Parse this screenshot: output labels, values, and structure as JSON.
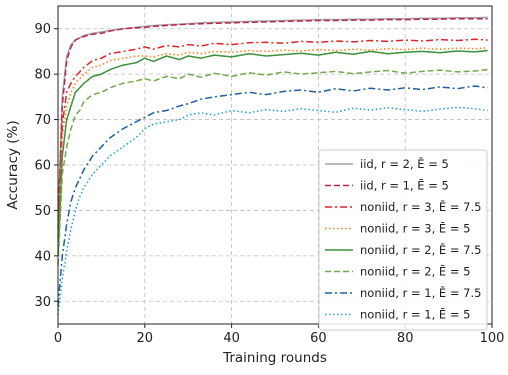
{
  "chart_data": {
    "type": "line",
    "xlabel": "Training rounds",
    "ylabel": "Accuracy (%)",
    "xlim": [
      0,
      100
    ],
    "ylim": [
      25,
      95
    ],
    "x_ticks": [
      0,
      20,
      40,
      60,
      80,
      100
    ],
    "y_ticks": [
      30,
      40,
      50,
      60,
      70,
      80,
      90
    ],
    "grid": true,
    "legend_position": "lower-right",
    "x": [
      0,
      1,
      2,
      3,
      4,
      5,
      6,
      8,
      10,
      12,
      15,
      18,
      20,
      22,
      25,
      28,
      30,
      33,
      36,
      40,
      44,
      48,
      52,
      56,
      60,
      64,
      68,
      72,
      76,
      80,
      84,
      88,
      92,
      96,
      99
    ],
    "series": [
      {
        "name": "iid, r = 2, Ē = 5",
        "color": "#a6a6a6",
        "dash": "solid",
        "values": [
          48,
          75,
          84,
          86.5,
          87.5,
          88,
          88.5,
          89,
          89.3,
          89.6,
          90,
          90.3,
          90.5,
          90.7,
          90.9,
          91,
          91.1,
          91.3,
          91.4,
          91.5,
          91.6,
          91.7,
          91.8,
          91.9,
          92,
          92,
          92.1,
          92.1,
          92.2,
          92.2,
          92.3,
          92.3,
          92.4,
          92.4,
          92.5
        ]
      },
      {
        "name": "iid, r = 1, Ē = 5",
        "color": "#b8264c",
        "dash": "dashed",
        "values": [
          46,
          73,
          83,
          86,
          87.5,
          88,
          88.3,
          88.8,
          89,
          89.5,
          90,
          90.2,
          90.3,
          90.5,
          90.7,
          90.9,
          91,
          91.1,
          91.2,
          91.3,
          91.4,
          91.5,
          91.6,
          91.7,
          91.8,
          91.8,
          91.9,
          91.9,
          92,
          92,
          92.1,
          92.1,
          92.2,
          92.2,
          92.2
        ]
      },
      {
        "name": "noniid, r = 3, Ē = 7.5",
        "color": "#d62728",
        "dash": "dashdot",
        "values": [
          44,
          69,
          76,
          78,
          79.5,
          80.5,
          81.5,
          83,
          83.5,
          84.5,
          85,
          85.5,
          86,
          85.5,
          86.3,
          86,
          86.5,
          86.2,
          86.8,
          86.5,
          86.9,
          87,
          86.8,
          87.2,
          87,
          87.3,
          87.1,
          87.4,
          87.2,
          87.5,
          87.3,
          87.6,
          87.4,
          87.7,
          87.5
        ]
      },
      {
        "name": "noniid, r = 3, Ē = 5",
        "color": "#ff7f0e",
        "dash": "dotted",
        "values": [
          42,
          66,
          73,
          76,
          78,
          79,
          80,
          81.5,
          82,
          83,
          83.5,
          84,
          84,
          83.8,
          84.5,
          84.2,
          84.8,
          84.5,
          85,
          84.8,
          85.2,
          85,
          85.3,
          85.1,
          85.4,
          85.2,
          85.5,
          85.3,
          85.6,
          85.4,
          85.7,
          85.5,
          85.7,
          85.6,
          85.8
        ]
      },
      {
        "name": "noniid, r = 2, Ē = 7.5",
        "color": "#3a923a",
        "dash": "solid",
        "values": [
          40,
          62,
          70,
          73,
          76,
          77,
          78,
          79.5,
          80,
          81,
          82,
          82.5,
          83.5,
          82.8,
          84,
          83.2,
          84,
          83.5,
          84.2,
          83.8,
          84.5,
          84,
          84.3,
          84.6,
          84.2,
          84.8,
          84.4,
          85,
          84.5,
          84.8,
          85,
          84.7,
          85.1,
          84.9,
          85.2
        ]
      },
      {
        "name": "noniid, r = 2, Ē = 5",
        "color": "#74a84a",
        "dash": "dashed",
        "values": [
          38,
          58,
          64,
          68,
          71,
          72,
          74,
          75.5,
          76,
          77,
          78,
          78.5,
          79,
          78.5,
          79.5,
          79,
          80,
          79.3,
          80.2,
          79.5,
          80.3,
          79.8,
          80.5,
          80,
          80.3,
          80.6,
          80.1,
          80.5,
          80.8,
          80.2,
          80.6,
          80.9,
          80.5,
          80.7,
          81
        ]
      },
      {
        "name": "noniid, r = 1, Ē = 7.5",
        "color": "#1f5fa8",
        "dash": "dashdot",
        "values": [
          29,
          40,
          47,
          52,
          55,
          57,
          59,
          62,
          64,
          66,
          68,
          69.5,
          70.5,
          71.5,
          72,
          73,
          73.5,
          74.5,
          75,
          75.5,
          76,
          75.5,
          76.2,
          76.5,
          76,
          76.8,
          76.3,
          76.9,
          76.5,
          77,
          76.6,
          77.2,
          76.8,
          77.4,
          77
        ]
      },
      {
        "name": "noniid, r = 1, Ē = 5",
        "color": "#1f9ed9",
        "dash": "dotted",
        "values": [
          27,
          35,
          41,
          46,
          50,
          53,
          55,
          58,
          60,
          62,
          64,
          66,
          68,
          69,
          69.5,
          70,
          71,
          71.5,
          71,
          72,
          71.5,
          72.2,
          71.8,
          72.4,
          72,
          71.6,
          72.5,
          72.1,
          72.6,
          72.2,
          71.8,
          72.3,
          72.7,
          72.4,
          72
        ]
      }
    ]
  }
}
